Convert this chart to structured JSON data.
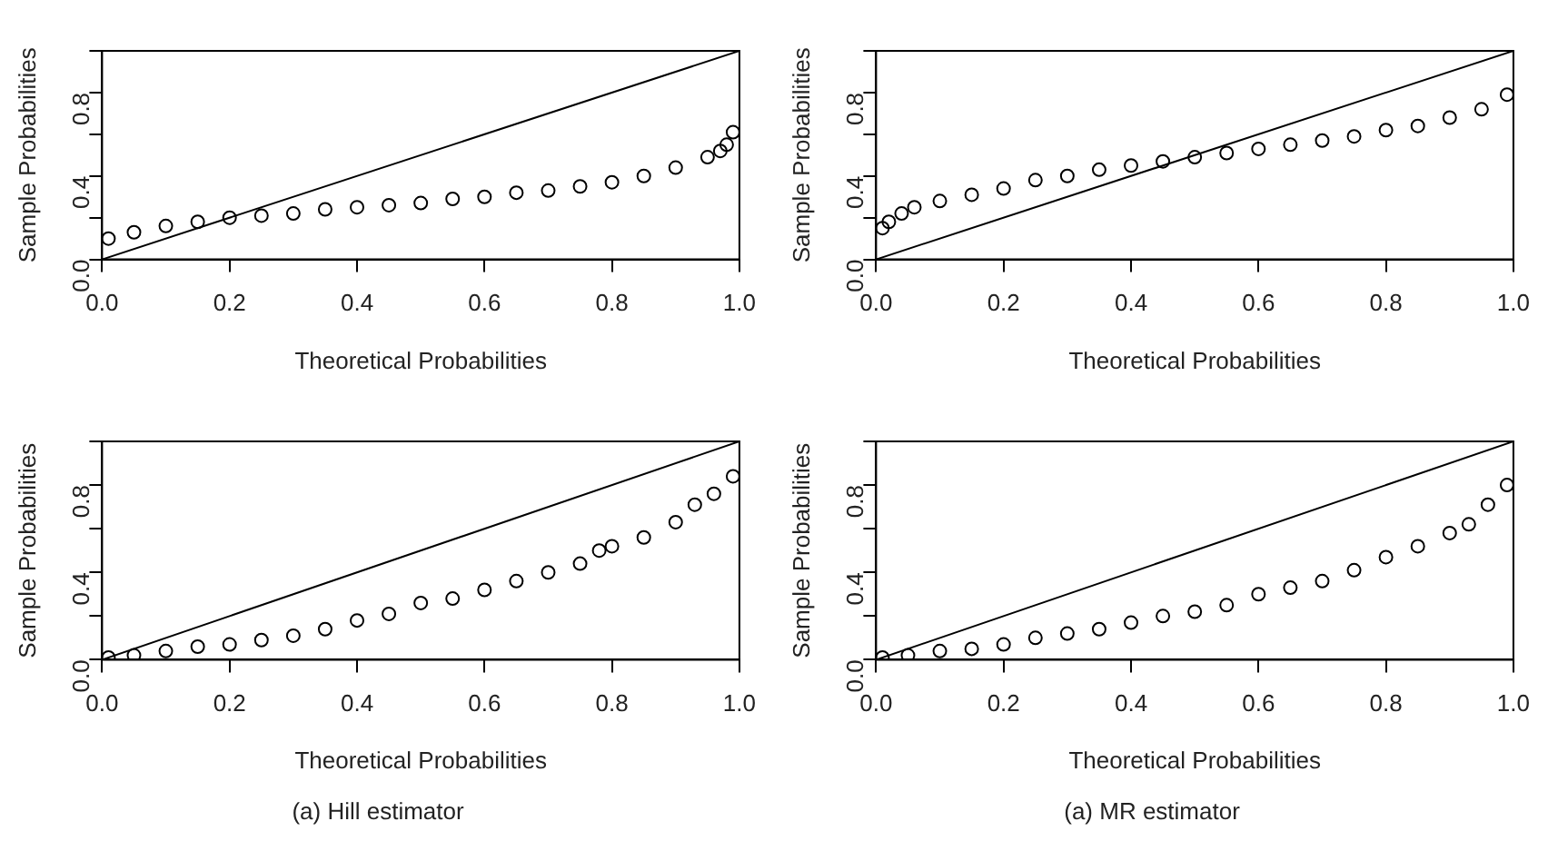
{
  "chart_data": [
    {
      "type": "scatter",
      "xlabel": "Theoretical Probabilities",
      "ylabel": "Sample Probabilities",
      "xlim": [
        0,
        1
      ],
      "ylim": [
        0,
        1
      ],
      "xticks": [
        {
          "value": 0,
          "label": "0.0"
        },
        {
          "value": 0.2,
          "label": "0.2"
        },
        {
          "value": 0.4,
          "label": "0.4"
        },
        {
          "value": 0.6,
          "label": "0.6"
        },
        {
          "value": 0.8,
          "label": "0.8"
        },
        {
          "value": 1,
          "label": "1.0"
        }
      ],
      "yticks": [
        {
          "value": 0,
          "label": "0.0"
        },
        {
          "value": 0.2,
          "label": null
        },
        {
          "value": 0.4,
          "label": "0.4"
        },
        {
          "value": 0.6,
          "label": null
        },
        {
          "value": 0.8,
          "label": "0.8"
        },
        {
          "value": 1,
          "label": null
        }
      ],
      "grid": false,
      "legend": false,
      "series": [
        {
          "marker": "circle",
          "color": "#000000",
          "x": [
            0.01,
            0.05,
            0.1,
            0.15,
            0.2,
            0.25,
            0.3,
            0.35,
            0.4,
            0.45,
            0.5,
            0.55,
            0.6,
            0.65,
            0.7,
            0.75,
            0.8,
            0.85,
            0.9,
            0.95,
            0.97,
            0.98,
            0.99
          ],
          "values": [
            0.1,
            0.13,
            0.16,
            0.18,
            0.2,
            0.21,
            0.22,
            0.24,
            0.25,
            0.26,
            0.27,
            0.29,
            0.3,
            0.32,
            0.33,
            0.35,
            0.37,
            0.4,
            0.44,
            0.49,
            0.52,
            0.55,
            0.61
          ]
        },
        {
          "type": "line",
          "marker": "none",
          "color": "#000000",
          "x": [
            0,
            1
          ],
          "values": [
            0,
            1
          ]
        }
      ]
    },
    {
      "type": "scatter",
      "xlabel": "Theoretical Probabilities",
      "ylabel": "Sample Probabilities",
      "xlim": [
        0,
        1
      ],
      "ylim": [
        0,
        1
      ],
      "xticks": [
        {
          "value": 0,
          "label": "0.0"
        },
        {
          "value": 0.2,
          "label": "0.2"
        },
        {
          "value": 0.4,
          "label": "0.4"
        },
        {
          "value": 0.6,
          "label": "0.6"
        },
        {
          "value": 0.8,
          "label": "0.8"
        },
        {
          "value": 1,
          "label": "1.0"
        }
      ],
      "yticks": [
        {
          "value": 0,
          "label": "0.0"
        },
        {
          "value": 0.2,
          "label": null
        },
        {
          "value": 0.4,
          "label": "0.4"
        },
        {
          "value": 0.6,
          "label": null
        },
        {
          "value": 0.8,
          "label": "0.8"
        },
        {
          "value": 1,
          "label": null
        }
      ],
      "grid": false,
      "legend": false,
      "series": [
        {
          "marker": "circle",
          "color": "#000000",
          "x": [
            0.01,
            0.02,
            0.04,
            0.06,
            0.1,
            0.15,
            0.2,
            0.25,
            0.3,
            0.35,
            0.4,
            0.45,
            0.5,
            0.55,
            0.6,
            0.65,
            0.7,
            0.75,
            0.8,
            0.85,
            0.9,
            0.95,
            0.99
          ],
          "values": [
            0.15,
            0.18,
            0.22,
            0.25,
            0.28,
            0.31,
            0.34,
            0.38,
            0.4,
            0.43,
            0.45,
            0.47,
            0.49,
            0.51,
            0.53,
            0.55,
            0.57,
            0.59,
            0.62,
            0.64,
            0.68,
            0.72,
            0.79
          ]
        },
        {
          "type": "line",
          "marker": "none",
          "color": "#000000",
          "x": [
            0,
            1
          ],
          "values": [
            0,
            1
          ]
        }
      ]
    },
    {
      "type": "scatter",
      "title": "(a) Hill estimator",
      "xlabel": "Theoretical Probabilities",
      "ylabel": "Sample Probabilities",
      "xlim": [
        0,
        1
      ],
      "ylim": [
        0,
        1
      ],
      "xticks": [
        {
          "value": 0,
          "label": "0.0"
        },
        {
          "value": 0.2,
          "label": "0.2"
        },
        {
          "value": 0.4,
          "label": "0.4"
        },
        {
          "value": 0.6,
          "label": "0.6"
        },
        {
          "value": 0.8,
          "label": "0.8"
        },
        {
          "value": 1,
          "label": "1.0"
        }
      ],
      "yticks": [
        {
          "value": 0,
          "label": "0.0"
        },
        {
          "value": 0.2,
          "label": null
        },
        {
          "value": 0.4,
          "label": "0.4"
        },
        {
          "value": 0.6,
          "label": null
        },
        {
          "value": 0.8,
          "label": "0.8"
        },
        {
          "value": 1,
          "label": null
        }
      ],
      "grid": false,
      "legend": false,
      "series": [
        {
          "marker": "circle",
          "color": "#000000",
          "x": [
            0.01,
            0.05,
            0.1,
            0.15,
            0.2,
            0.25,
            0.3,
            0.35,
            0.4,
            0.45,
            0.5,
            0.55,
            0.6,
            0.65,
            0.7,
            0.75,
            0.78,
            0.8,
            0.85,
            0.9,
            0.93,
            0.96,
            0.99
          ],
          "values": [
            0.01,
            0.02,
            0.04,
            0.06,
            0.07,
            0.09,
            0.11,
            0.14,
            0.18,
            0.21,
            0.26,
            0.28,
            0.32,
            0.36,
            0.4,
            0.44,
            0.5,
            0.52,
            0.56,
            0.63,
            0.71,
            0.76,
            0.84
          ]
        },
        {
          "type": "line",
          "marker": "none",
          "color": "#000000",
          "x": [
            0,
            1
          ],
          "values": [
            0,
            1
          ]
        }
      ]
    },
    {
      "type": "scatter",
      "title": "(a) MR estimator",
      "xlabel": "Theoretical Probabilities",
      "ylabel": "Sample Probabilities",
      "xlim": [
        0,
        1
      ],
      "ylim": [
        0,
        1
      ],
      "xticks": [
        {
          "value": 0,
          "label": "0.0"
        },
        {
          "value": 0.2,
          "label": "0.2"
        },
        {
          "value": 0.4,
          "label": "0.4"
        },
        {
          "value": 0.6,
          "label": "0.6"
        },
        {
          "value": 0.8,
          "label": "0.8"
        },
        {
          "value": 1,
          "label": "1.0"
        }
      ],
      "yticks": [
        {
          "value": 0,
          "label": "0.0"
        },
        {
          "value": 0.2,
          "label": null
        },
        {
          "value": 0.4,
          "label": "0.4"
        },
        {
          "value": 0.6,
          "label": null
        },
        {
          "value": 0.8,
          "label": "0.8"
        },
        {
          "value": 1,
          "label": null
        }
      ],
      "grid": false,
      "legend": false,
      "series": [
        {
          "marker": "circle",
          "color": "#000000",
          "x": [
            0.01,
            0.05,
            0.1,
            0.15,
            0.2,
            0.25,
            0.3,
            0.35,
            0.4,
            0.45,
            0.5,
            0.55,
            0.6,
            0.65,
            0.7,
            0.75,
            0.8,
            0.85,
            0.9,
            0.93,
            0.96,
            0.99
          ],
          "values": [
            0.01,
            0.02,
            0.04,
            0.05,
            0.07,
            0.1,
            0.12,
            0.14,
            0.17,
            0.2,
            0.22,
            0.25,
            0.3,
            0.33,
            0.36,
            0.41,
            0.47,
            0.52,
            0.58,
            0.62,
            0.71,
            0.8
          ]
        },
        {
          "type": "line",
          "marker": "none",
          "color": "#000000",
          "x": [
            0,
            1
          ],
          "values": [
            0,
            1
          ]
        }
      ]
    }
  ]
}
